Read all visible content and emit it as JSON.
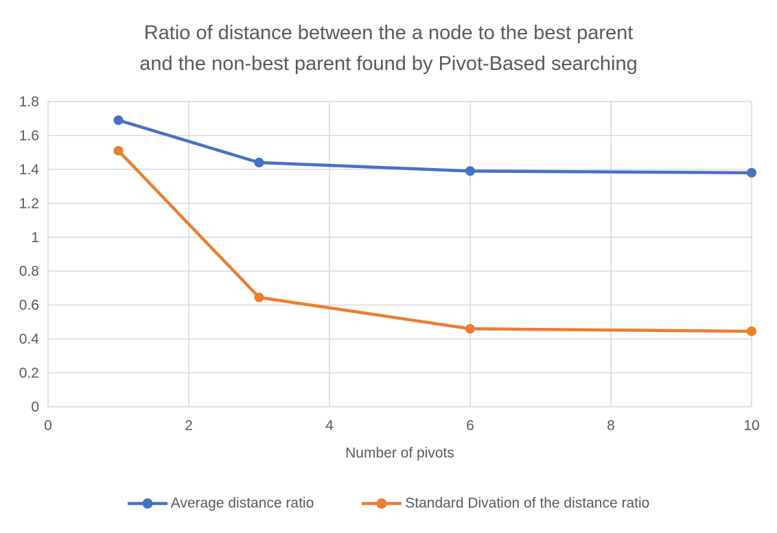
{
  "chart": {
    "title_lines": [
      "Ratio of distance between the a node to the best parent",
      "and the non-best parent found by Pivot-Based searching"
    ],
    "colors": {
      "title_text": "#595959",
      "axis_text": "#595959",
      "grid": "#d9d9d9",
      "background": "#ffffff"
    }
  },
  "chart_data": {
    "type": "line",
    "title": "Ratio of distance between the a node to the best parent and the non-best parent found by Pivot-Based searching",
    "xlabel": "Number of pivots",
    "ylabel": "",
    "x": [
      1,
      3,
      6,
      10
    ],
    "series": [
      {
        "name": "Average distance ratio",
        "color": "#4472C4",
        "marker": "circle",
        "values": [
          1.69,
          1.44,
          1.39,
          1.38
        ]
      },
      {
        "name": "Standard Divation of the distance ratio",
        "color": "#ED7D31",
        "marker": "circle",
        "values": [
          1.51,
          0.645,
          0.46,
          0.445
        ]
      }
    ],
    "xlim": [
      0,
      10
    ],
    "ylim": [
      0,
      1.8
    ],
    "x_ticks": [
      0,
      2,
      4,
      6,
      8,
      10
    ],
    "x_tick_labels": [
      "0",
      "2",
      "4",
      "6",
      "8",
      "10"
    ],
    "y_ticks": [
      0,
      0.2,
      0.4,
      0.6,
      0.8,
      1.0,
      1.2,
      1.4,
      1.6,
      1.8
    ],
    "y_tick_labels": [
      "0",
      "0.2",
      "0.4",
      "0.6",
      "0.8",
      "1",
      "1.2",
      "1.4",
      "1.6",
      "1.8"
    ],
    "grid": true,
    "grid_vertical": true,
    "legend_position": "bottom"
  }
}
